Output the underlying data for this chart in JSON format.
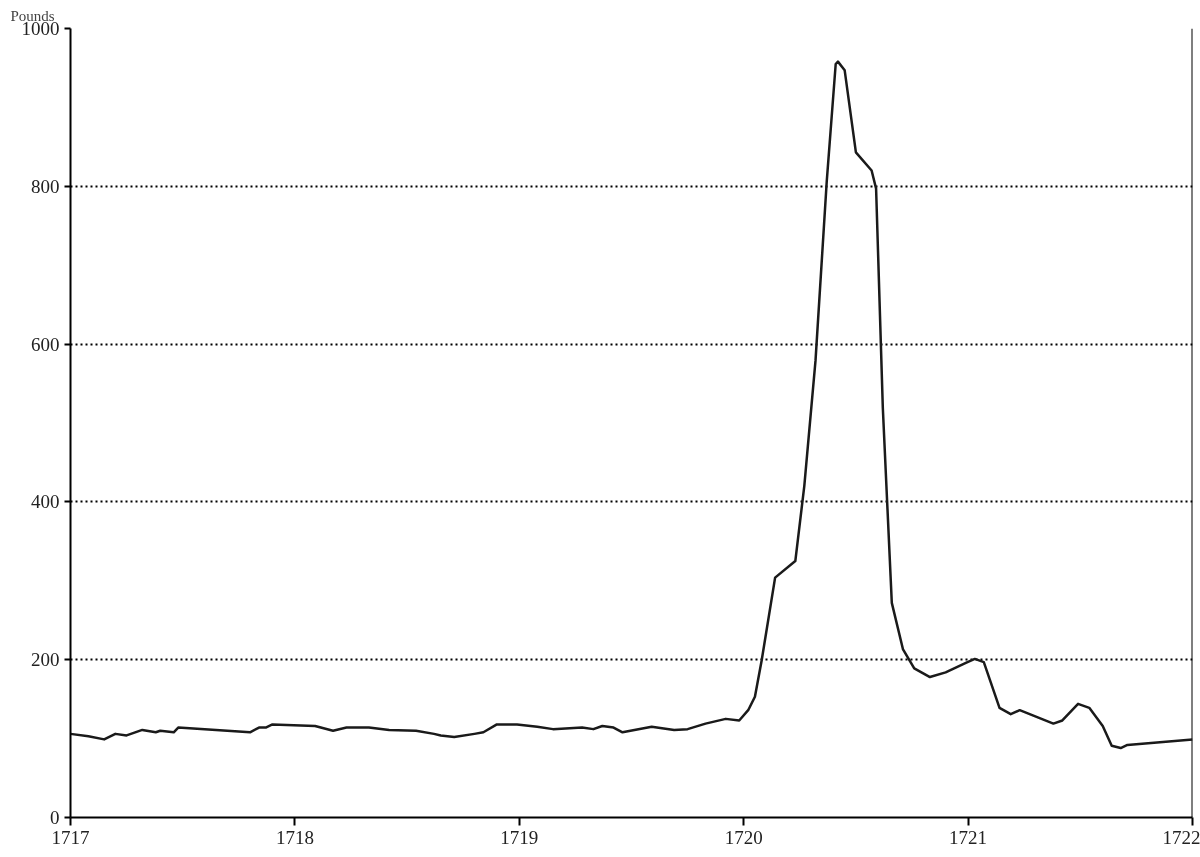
{
  "chart_data": {
    "type": "line",
    "ylabel": "Pounds",
    "xlim": [
      1717,
      1722
    ],
    "xticks": [
      1717,
      1718,
      1719,
      1720,
      1721,
      1722
    ],
    "ylim": [
      0,
      1000
    ],
    "yticks": [
      0,
      200,
      400,
      600,
      800,
      1000
    ],
    "grid": "y",
    "line_style": "solid",
    "series": [
      {
        "color": "#1a1a1a",
        "x": [
          1717.0,
          1717.08,
          1717.15,
          1717.2,
          1717.25,
          1717.32,
          1717.38,
          1717.4,
          1717.46,
          1717.48,
          1717.8,
          1717.84,
          1717.87,
          1717.9,
          1718.09,
          1718.17,
          1718.23,
          1718.33,
          1718.42,
          1718.54,
          1718.62,
          1718.65,
          1718.71,
          1718.8,
          1718.84,
          1718.9,
          1718.99,
          1719.08,
          1719.15,
          1719.28,
          1719.33,
          1719.37,
          1719.42,
          1719.46,
          1719.59,
          1719.69,
          1719.75,
          1719.83,
          1719.92,
          1719.98,
          1720.02,
          1720.05,
          1720.08,
          1720.14,
          1720.23,
          1720.27,
          1720.32,
          1720.37,
          1720.41,
          1720.42,
          1720.45,
          1720.5,
          1720.57,
          1720.59,
          1720.62,
          1720.66,
          1720.71,
          1720.76,
          1720.83,
          1720.9,
          1720.99,
          1721.03,
          1721.07,
          1721.14,
          1721.19,
          1721.23,
          1721.38,
          1721.42,
          1721.49,
          1721.54,
          1721.6,
          1721.64,
          1721.68,
          1721.71,
          1722.0
        ],
        "values": [
          106,
          103,
          99,
          106,
          104,
          111,
          108,
          110,
          108,
          114,
          108,
          114,
          114,
          118,
          116,
          110,
          114,
          114,
          111,
          110,
          106,
          104,
          102,
          106,
          108,
          118,
          118,
          115,
          112,
          114,
          112,
          116,
          114,
          108,
          115,
          111,
          112,
          119,
          125,
          123,
          136,
          153,
          199,
          304,
          325,
          420,
          579,
          806,
          955,
          958,
          947,
          843,
          820,
          797,
          519,
          272,
          213,
          189,
          178,
          184,
          196,
          201,
          197,
          139,
          131,
          136,
          119,
          123,
          144,
          139,
          116,
          91,
          88,
          92,
          99
        ]
      }
    ]
  }
}
